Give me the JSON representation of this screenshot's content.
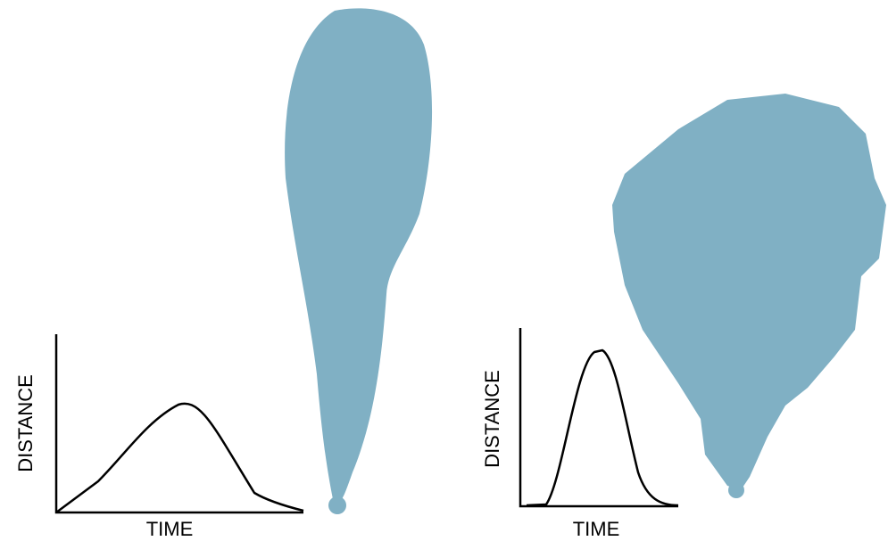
{
  "panels": [
    {
      "y_label": "DISTANCE",
      "x_label": "TIME"
    },
    {
      "y_label": "DISTANCE",
      "x_label": "TIME"
    }
  ]
}
